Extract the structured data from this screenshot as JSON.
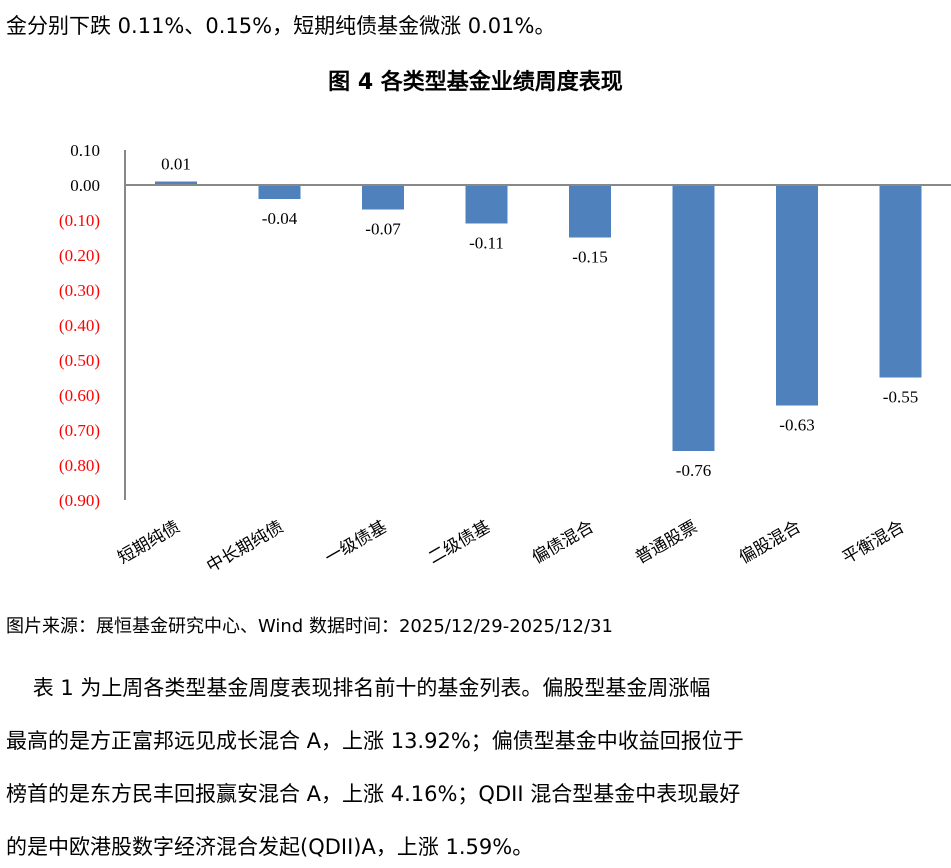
{
  "intro_line": "金分别下跌 0.11%、0.15%，短期纯债基金微涨 0.01%。",
  "chart_data": {
    "type": "bar",
    "title": "图 4 各类型基金业绩周度表现",
    "categories": [
      "短期纯债",
      "中长期纯债",
      "一级债基",
      "二级债基",
      "偏债混合",
      "普通股票",
      "偏股混合",
      "平衡混合"
    ],
    "values": [
      0.01,
      -0.04,
      -0.07,
      -0.11,
      -0.15,
      -0.76,
      -0.63,
      -0.55
    ],
    "data_labels": [
      "0.01",
      "-0.04",
      "-0.07",
      "-0.11",
      "-0.15",
      "-0.76",
      "-0.63",
      "-0.55"
    ],
    "ylim": [
      -0.9,
      0.1
    ],
    "yticks": [
      "0.10",
      "0.00",
      "(0.10)",
      "(0.20)",
      "(0.30)",
      "(0.40)",
      "(0.50)",
      "(0.60)",
      "(0.70)",
      "(0.80)",
      "(0.90)"
    ],
    "grid": false,
    "bar_color": "#4f81bd",
    "negative_tick_color": "#ff0000"
  },
  "source": "图片来源：展恒基金研究中心、Wind  数据时间：2025/12/29-2025/12/31",
  "paragraph": [
    "    表 1 为上周各类型基金周度表现排名前十的基金列表。偏股型基金周涨幅",
    "最高的是方正富邦远见成长混合 A，上涨 13.92%；偏债型基金中收益回报位于",
    "榜首的是东方民丰回报赢安混合 A，上涨 4.16%；QDII 混合型基金中表现最好",
    "的是中欧港股数字经济混合发起(QDII)A，上涨 1.59%。"
  ]
}
